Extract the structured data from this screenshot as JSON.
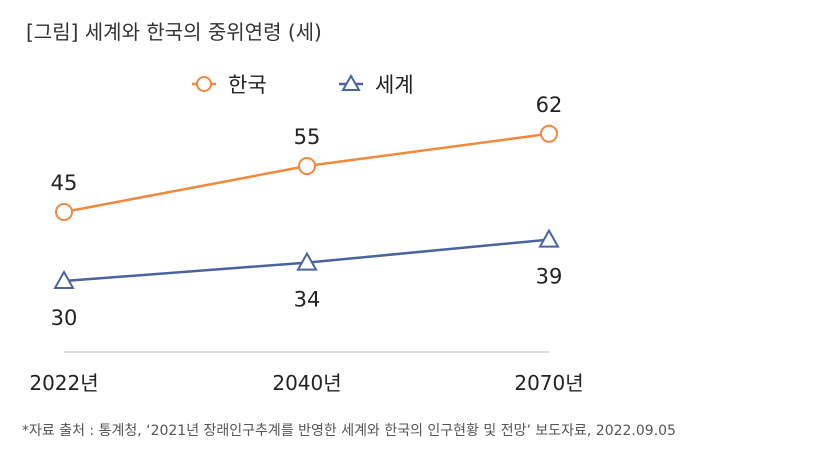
{
  "title": "[그림] 세계와 한국의 중위연령 (세)",
  "source": "*자료 출처 : 통계청, ‘2021년 장래인구추계를 반영한 세계와 한국의 인구현황 및 전망’ 보도자료, 2022.09.05",
  "chart_data": {
    "type": "line",
    "title": "[그림] 세계와 한국의 중위연령 (세)",
    "xlabel": "",
    "ylabel": "",
    "categories": [
      "2022년",
      "2040년",
      "2070년"
    ],
    "series": [
      {
        "name": "한국",
        "values": [
          45,
          55,
          62
        ],
        "color": "#F0883E",
        "marker": "circle",
        "label_position": "above"
      },
      {
        "name": "세계",
        "values": [
          30,
          34,
          39
        ],
        "color": "#4A64A0",
        "marker": "triangle",
        "label_position": "below"
      }
    ],
    "legend": "top-center",
    "grid": false
  }
}
